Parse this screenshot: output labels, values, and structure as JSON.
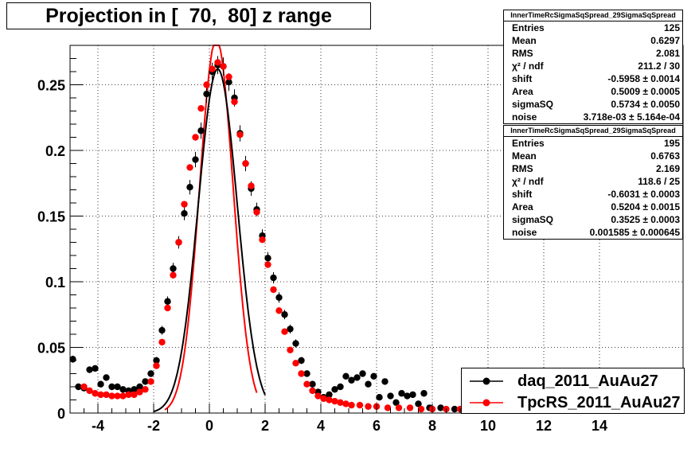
{
  "title": "Projection in [  70,  80] z range",
  "stats_boxes": [
    {
      "header": "InnerTimeRcSigmaSqSpread_29SigmaSqSpread",
      "rows": [
        {
          "k": "Entries",
          "v": "125"
        },
        {
          "k": "Mean",
          "v": "0.6297"
        },
        {
          "k": "RMS",
          "v": "2.081"
        },
        {
          "k": "χ² / ndf",
          "v": "211.2 / 30"
        },
        {
          "k": "shift",
          "v": "-0.5958 ± 0.0014"
        },
        {
          "k": "Area",
          "v": "0.5009 ± 0.0005"
        },
        {
          "k": "sigmaSQ",
          "v": "0.5734 ± 0.0050"
        },
        {
          "k": "noise",
          "v": "3.718e-03 ± 5.164e-04"
        }
      ]
    },
    {
      "header": "InnerTimeRcSigmaSqSpread_29SigmaSqSpread",
      "rows": [
        {
          "k": "Entries",
          "v": "195"
        },
        {
          "k": "Mean",
          "v": "0.6763"
        },
        {
          "k": "RMS",
          "v": "2.169"
        },
        {
          "k": "χ² / ndf",
          "v": "118.6 / 25"
        },
        {
          "k": "shift",
          "v": "-0.6031 ± 0.0003"
        },
        {
          "k": "Area",
          "v": "0.5204 ± 0.0015"
        },
        {
          "k": "sigmaSQ",
          "v": "0.3525 ± 0.0003"
        },
        {
          "k": "noise",
          "v": "0.001585 ± 0.000645"
        }
      ]
    }
  ],
  "legend": [
    {
      "label": "daq_2011_AuAu27",
      "color": "#000000"
    },
    {
      "label": "TpcRS_2011_AuAu27",
      "color": "#ff0000"
    }
  ],
  "chart_data": {
    "type": "scatter",
    "title": "Projection in [  70,  80] z range",
    "xlabel": "",
    "ylabel": "",
    "xlim": [
      -5,
      17
    ],
    "ylim": [
      0,
      0.28
    ],
    "grid": true,
    "legend_position": "bottom-right",
    "x_ticks": [
      -4,
      -2,
      0,
      2,
      4,
      6,
      8,
      10,
      12,
      14
    ],
    "y_ticks": [
      0,
      0.05,
      0.1,
      0.15,
      0.2,
      0.25
    ],
    "x_tick_labels": [
      "-4",
      "-2",
      "0",
      "2",
      "4",
      "6",
      "8",
      "10",
      "12",
      "14"
    ],
    "y_tick_labels": [
      "0",
      "0.05",
      "0.1",
      "0.15",
      "0.2",
      "0.25"
    ],
    "series": [
      {
        "name": "daq_2011_AuAu27",
        "color": "#000000",
        "points": [
          [
            -4.9,
            0.041
          ],
          [
            -4.7,
            0.02
          ],
          [
            -4.5,
            0.019
          ],
          [
            -4.3,
            0.033
          ],
          [
            -4.1,
            0.034
          ],
          [
            -3.9,
            0.022
          ],
          [
            -3.7,
            0.027
          ],
          [
            -3.5,
            0.02
          ],
          [
            -3.3,
            0.02
          ],
          [
            -3.1,
            0.018
          ],
          [
            -2.9,
            0.017
          ],
          [
            -2.7,
            0.018
          ],
          [
            -2.5,
            0.02
          ],
          [
            -2.3,
            0.024
          ],
          [
            -2.1,
            0.03
          ],
          [
            -1.9,
            0.04
          ],
          [
            -1.7,
            0.063
          ],
          [
            -1.5,
            0.085
          ],
          [
            -1.3,
            0.11
          ],
          [
            -1.1,
            0.13
          ],
          [
            -0.9,
            0.152
          ],
          [
            -0.7,
            0.172
          ],
          [
            -0.5,
            0.193
          ],
          [
            -0.3,
            0.215
          ],
          [
            -0.1,
            0.243
          ],
          [
            0.1,
            0.26
          ],
          [
            0.3,
            0.265
          ],
          [
            0.5,
            0.264
          ],
          [
            0.7,
            0.252
          ],
          [
            0.9,
            0.24
          ],
          [
            1.1,
            0.213
          ],
          [
            1.3,
            0.19
          ],
          [
            1.5,
            0.171
          ],
          [
            1.7,
            0.155
          ],
          [
            1.9,
            0.135
          ],
          [
            2.1,
            0.118
          ],
          [
            2.3,
            0.103
          ],
          [
            2.5,
            0.088
          ],
          [
            2.7,
            0.075
          ],
          [
            2.9,
            0.064
          ],
          [
            3.1,
            0.053
          ],
          [
            3.3,
            0.04
          ],
          [
            3.5,
            0.03
          ],
          [
            3.7,
            0.022
          ],
          [
            3.9,
            0.016
          ],
          [
            4.1,
            0.012
          ],
          [
            4.3,
            0.014
          ],
          [
            4.5,
            0.018
          ],
          [
            4.7,
            0.02
          ],
          [
            4.9,
            0.028
          ],
          [
            5.1,
            0.025
          ],
          [
            5.3,
            0.027
          ],
          [
            5.5,
            0.03
          ],
          [
            5.7,
            0.022
          ],
          [
            5.9,
            0.028
          ],
          [
            6.1,
            0.012
          ],
          [
            6.3,
            0.024
          ],
          [
            6.5,
            0.013
          ],
          [
            6.7,
            0.008
          ],
          [
            6.9,
            0.015
          ],
          [
            7.1,
            0.013
          ],
          [
            7.3,
            0.014
          ],
          [
            7.5,
            0.007
          ],
          [
            7.7,
            0.015
          ],
          [
            7.9,
            0.004
          ],
          [
            8.3,
            0.004
          ],
          [
            8.8,
            0.003
          ]
        ]
      },
      {
        "name": "TpcRS_2011_AuAu27",
        "color": "#ff0000",
        "points": [
          [
            -4.5,
            0.02
          ],
          [
            -4.3,
            0.017
          ],
          [
            -4.1,
            0.015
          ],
          [
            -3.9,
            0.014
          ],
          [
            -3.7,
            0.014
          ],
          [
            -3.5,
            0.013
          ],
          [
            -3.3,
            0.013
          ],
          [
            -3.1,
            0.013
          ],
          [
            -2.9,
            0.014
          ],
          [
            -2.7,
            0.014
          ],
          [
            -2.5,
            0.016
          ],
          [
            -2.3,
            0.018
          ],
          [
            -2.1,
            0.024
          ],
          [
            -1.9,
            0.036
          ],
          [
            -1.7,
            0.054
          ],
          [
            -1.5,
            0.08
          ],
          [
            -1.3,
            0.105
          ],
          [
            -1.1,
            0.13
          ],
          [
            -0.9,
            0.159
          ],
          [
            -0.7,
            0.187
          ],
          [
            -0.5,
            0.21
          ],
          [
            -0.3,
            0.232
          ],
          [
            -0.1,
            0.25
          ],
          [
            0.1,
            0.262
          ],
          [
            0.3,
            0.267
          ],
          [
            0.5,
            0.264
          ],
          [
            0.7,
            0.256
          ],
          [
            0.9,
            0.237
          ],
          [
            1.1,
            0.212
          ],
          [
            1.3,
            0.19
          ],
          [
            1.5,
            0.173
          ],
          [
            1.7,
            0.153
          ],
          [
            1.9,
            0.132
          ],
          [
            2.1,
            0.113
          ],
          [
            2.3,
            0.094
          ],
          [
            2.5,
            0.078
          ],
          [
            2.7,
            0.062
          ],
          [
            2.9,
            0.048
          ],
          [
            3.1,
            0.038
          ],
          [
            3.3,
            0.03
          ],
          [
            3.5,
            0.022
          ],
          [
            3.7,
            0.017
          ],
          [
            3.9,
            0.013
          ],
          [
            4.1,
            0.011
          ],
          [
            4.3,
            0.01
          ],
          [
            4.5,
            0.009
          ],
          [
            4.7,
            0.008
          ],
          [
            4.9,
            0.007
          ],
          [
            5.1,
            0.006
          ],
          [
            5.4,
            0.006
          ],
          [
            5.7,
            0.005
          ],
          [
            6.0,
            0.005
          ],
          [
            6.4,
            0.004
          ],
          [
            6.8,
            0.004
          ],
          [
            7.2,
            0.004
          ],
          [
            7.6,
            0.003
          ],
          [
            8.0,
            0.003
          ],
          [
            8.5,
            0.003
          ],
          [
            9.0,
            0.003
          ],
          [
            9.5,
            0.003
          ],
          [
            10.0,
            0.003
          ],
          [
            10.5,
            0.003
          ],
          [
            11.0,
            0.003
          ],
          [
            11.5,
            0.003
          ],
          [
            12.0,
            0.003
          ],
          [
            12.5,
            0.003
          ],
          [
            13.0,
            0.003
          ],
          [
            13.5,
            0.003
          ],
          [
            14.0,
            0.003
          ],
          [
            14.5,
            0.003
          ],
          [
            15.0,
            0.003
          ],
          [
            15.5,
            0.003
          ]
        ]
      }
    ],
    "fit_curves": [
      {
        "series": "TpcRS_2011_AuAu27",
        "color": "#ff0000",
        "shift": 0.25,
        "amp": 0.285,
        "sigma": 0.6,
        "xrange": [
          -1.6,
          1.7
        ]
      },
      {
        "series": "daq_2011_AuAu27",
        "color": "#000000",
        "shift": 0.3,
        "amp": 0.262,
        "sigma": 0.7,
        "xrange": [
          -2.0,
          2.0
        ]
      }
    ]
  }
}
